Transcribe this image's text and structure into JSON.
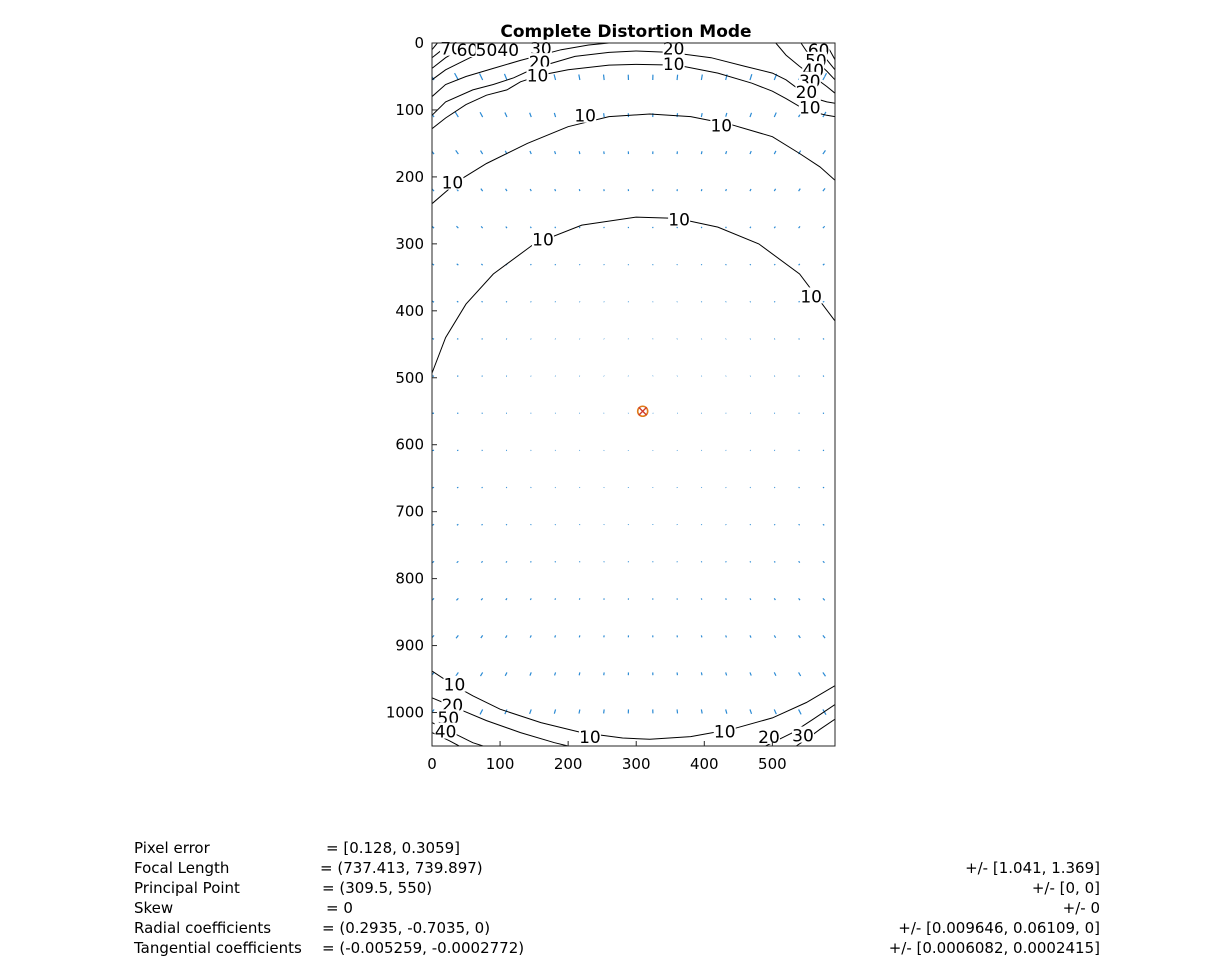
{
  "chart_data": {
    "type": "contour-quiver",
    "title": "Complete Distortion Mode",
    "xlabel": "",
    "ylabel": "",
    "xlim": [
      0,
      592
    ],
    "ylim": [
      0,
      1050
    ],
    "y_reversed": true,
    "xticks": [
      "0",
      "100",
      "200",
      "300",
      "400",
      "500"
    ],
    "yticks": [
      "0",
      "100",
      "200",
      "300",
      "400",
      "500",
      "600",
      "700",
      "800",
      "900",
      "1000"
    ],
    "principal_point": [
      309.5,
      550
    ],
    "principal_point_marker": "circle-cross",
    "colors": {
      "vectors": "#2a8ad4",
      "contours": "#000000",
      "marker": "#e07b1a",
      "marker_cross": "#d03a2a"
    },
    "contour_lines": [
      {
        "level": "10",
        "points": [
          [
            0,
            493
          ],
          [
            20,
            440
          ],
          [
            50,
            390
          ],
          [
            90,
            345
          ],
          [
            150,
            300
          ],
          [
            220,
            272
          ],
          [
            300,
            260
          ],
          [
            360,
            262
          ],
          [
            420,
            275
          ],
          [
            480,
            300
          ],
          [
            540,
            345
          ],
          [
            592,
            415
          ]
        ]
      },
      {
        "level": "10",
        "points": [
          [
            0,
            240
          ],
          [
            40,
            205
          ],
          [
            80,
            180
          ],
          [
            140,
            150
          ],
          [
            200,
            125
          ],
          [
            260,
            110
          ],
          [
            320,
            106
          ],
          [
            380,
            110
          ],
          [
            440,
            122
          ],
          [
            500,
            140
          ],
          [
            540,
            165
          ],
          [
            570,
            185
          ],
          [
            592,
            205
          ]
        ]
      },
      {
        "level": "10",
        "points": [
          [
            0,
            128
          ],
          [
            20,
            112
          ],
          [
            50,
            92
          ],
          [
            80,
            78
          ],
          [
            110,
            70
          ],
          [
            130,
            58
          ],
          [
            160,
            48
          ],
          [
            200,
            40
          ],
          [
            260,
            33
          ],
          [
            300,
            32
          ],
          [
            360,
            33
          ],
          [
            420,
            45
          ],
          [
            470,
            60
          ],
          [
            500,
            72
          ],
          [
            520,
            83
          ],
          [
            540,
            95
          ],
          [
            560,
            103
          ],
          [
            580,
            108
          ],
          [
            592,
            110
          ]
        ]
      },
      {
        "level": "20",
        "points": [
          [
            0,
            108
          ],
          [
            20,
            88
          ],
          [
            60,
            70
          ],
          [
            90,
            62
          ],
          [
            120,
            52
          ],
          [
            150,
            38
          ],
          [
            210,
            20
          ],
          [
            260,
            14
          ],
          [
            300,
            12
          ],
          [
            350,
            14
          ],
          [
            410,
            22
          ],
          [
            460,
            35
          ],
          [
            500,
            45
          ],
          [
            520,
            55
          ],
          [
            540,
            70
          ],
          [
            560,
            82
          ],
          [
            580,
            88
          ],
          [
            592,
            90
          ]
        ]
      },
      {
        "level": "30",
        "points": [
          [
            0,
            80
          ],
          [
            20,
            62
          ],
          [
            50,
            50
          ],
          [
            90,
            38
          ],
          [
            130,
            26
          ],
          [
            190,
            10
          ],
          [
            230,
            3
          ],
          [
            260,
            0
          ]
        ]
      },
      {
        "level": "40",
        "points": [
          [
            0,
            55
          ],
          [
            20,
            40
          ],
          [
            50,
            25
          ],
          [
            80,
            10
          ],
          [
            100,
            0
          ]
        ]
      },
      {
        "level": "50",
        "points": [
          [
            0,
            38
          ],
          [
            20,
            22
          ],
          [
            40,
            10
          ],
          [
            55,
            0
          ]
        ]
      },
      {
        "level": "60",
        "points": [
          [
            0,
            22
          ],
          [
            15,
            10
          ],
          [
            25,
            0
          ]
        ]
      },
      {
        "level": "70",
        "points": [
          [
            0,
            10
          ],
          [
            8,
            0
          ]
        ]
      },
      {
        "level": "30",
        "points": [
          [
            592,
            75
          ],
          [
            580,
            65
          ],
          [
            560,
            50
          ],
          [
            540,
            35
          ],
          [
            520,
            18
          ],
          [
            505,
            0
          ]
        ]
      },
      {
        "level": "40",
        "points": [
          [
            592,
            55
          ],
          [
            580,
            42
          ],
          [
            565,
            28
          ],
          [
            550,
            12
          ],
          [
            542,
            0
          ]
        ]
      },
      {
        "level": "50",
        "points": [
          [
            592,
            40
          ],
          [
            580,
            25
          ],
          [
            570,
            12
          ],
          [
            562,
            0
          ]
        ]
      },
      {
        "level": "60",
        "points": [
          [
            592,
            25
          ],
          [
            585,
            12
          ],
          [
            578,
            0
          ]
        ]
      },
      {
        "level": "10",
        "points": [
          [
            0,
            938
          ],
          [
            30,
            958
          ],
          [
            60,
            975
          ],
          [
            100,
            995
          ],
          [
            160,
            1015
          ],
          [
            220,
            1030
          ],
          [
            280,
            1038
          ],
          [
            320,
            1040
          ],
          [
            380,
            1036
          ],
          [
            440,
            1025
          ],
          [
            500,
            1008
          ],
          [
            550,
            985
          ],
          [
            592,
            960
          ]
        ]
      },
      {
        "level": "20",
        "points": [
          [
            0,
            978
          ],
          [
            40,
            995
          ],
          [
            80,
            1012
          ],
          [
            130,
            1030
          ],
          [
            180,
            1045
          ],
          [
            200,
            1050
          ]
        ]
      },
      {
        "level": "20",
        "points": [
          [
            592,
            988
          ],
          [
            560,
            1010
          ],
          [
            530,
            1030
          ],
          [
            500,
            1045
          ],
          [
            490,
            1050
          ]
        ]
      },
      {
        "level": "30",
        "points": [
          [
            592,
            1010
          ],
          [
            570,
            1025
          ],
          [
            550,
            1040
          ],
          [
            535,
            1050
          ]
        ]
      },
      {
        "level": "40",
        "points": [
          [
            0,
            1015
          ],
          [
            30,
            1030
          ],
          [
            60,
            1045
          ],
          [
            75,
            1050
          ]
        ]
      },
      {
        "level": "50",
        "points": [
          [
            0,
            1030
          ],
          [
            25,
            1042
          ],
          [
            40,
            1050
          ]
        ]
      }
    ],
    "contour_labels": [
      {
        "text": "70",
        "x": 28,
        "y": 10
      },
      {
        "text": "60",
        "x": 52,
        "y": 12
      },
      {
        "text": "50",
        "x": 80,
        "y": 12
      },
      {
        "text": "40",
        "x": 112,
        "y": 12
      },
      {
        "text": "30",
        "x": 160,
        "y": 10
      },
      {
        "text": "20",
        "x": 158,
        "y": 30
      },
      {
        "text": "10",
        "x": 155,
        "y": 50
      },
      {
        "text": "20",
        "x": 355,
        "y": 10
      },
      {
        "text": "10",
        "x": 355,
        "y": 33
      },
      {
        "text": "60",
        "x": 568,
        "y": 12
      },
      {
        "text": "50",
        "x": 564,
        "y": 28
      },
      {
        "text": "40",
        "x": 560,
        "y": 42
      },
      {
        "text": "30",
        "x": 555,
        "y": 58
      },
      {
        "text": "20",
        "x": 550,
        "y": 75
      },
      {
        "text": "10",
        "x": 555,
        "y": 98
      },
      {
        "text": "10",
        "x": 225,
        "y": 110
      },
      {
        "text": "10",
        "x": 425,
        "y": 125
      },
      {
        "text": "10",
        "x": 30,
        "y": 210
      },
      {
        "text": "10",
        "x": 163,
        "y": 295
      },
      {
        "text": "10",
        "x": 363,
        "y": 265
      },
      {
        "text": "10",
        "x": 557,
        "y": 380
      },
      {
        "text": "10",
        "x": 33,
        "y": 960
      },
      {
        "text": "20",
        "x": 30,
        "y": 990
      },
      {
        "text": "50",
        "x": 24,
        "y": 1010
      },
      {
        "text": "40",
        "x": 20,
        "y": 1030
      },
      {
        "text": "10",
        "x": 232,
        "y": 1038
      },
      {
        "text": "10",
        "x": 430,
        "y": 1030
      },
      {
        "text": "20",
        "x": 495,
        "y": 1038
      },
      {
        "text": "30",
        "x": 545,
        "y": 1036
      }
    ]
  },
  "parameters": [
    {
      "name": "Pixel error",
      "value": "= [0.128, 0.3059]",
      "error": ""
    },
    {
      "name": "Focal Length",
      "value": "= (737.413, 739.897)",
      "error": "+/- [1.041, 1.369]"
    },
    {
      "name": "Principal Point",
      "value": "= (309.5, 550)",
      "error": "+/- [0, 0]"
    },
    {
      "name": "Skew",
      "value": "= 0",
      "error": "+/- 0"
    },
    {
      "name": "Radial coefficients",
      "value": "= (0.2935, -0.7035, 0)",
      "error": "+/- [0.009646, 0.06109, 0]"
    },
    {
      "name": "Tangential coefficients",
      "value": "= (-0.005259, -0.0002772)",
      "error": "+/- [0.0006082, 0.0002415]"
    }
  ]
}
